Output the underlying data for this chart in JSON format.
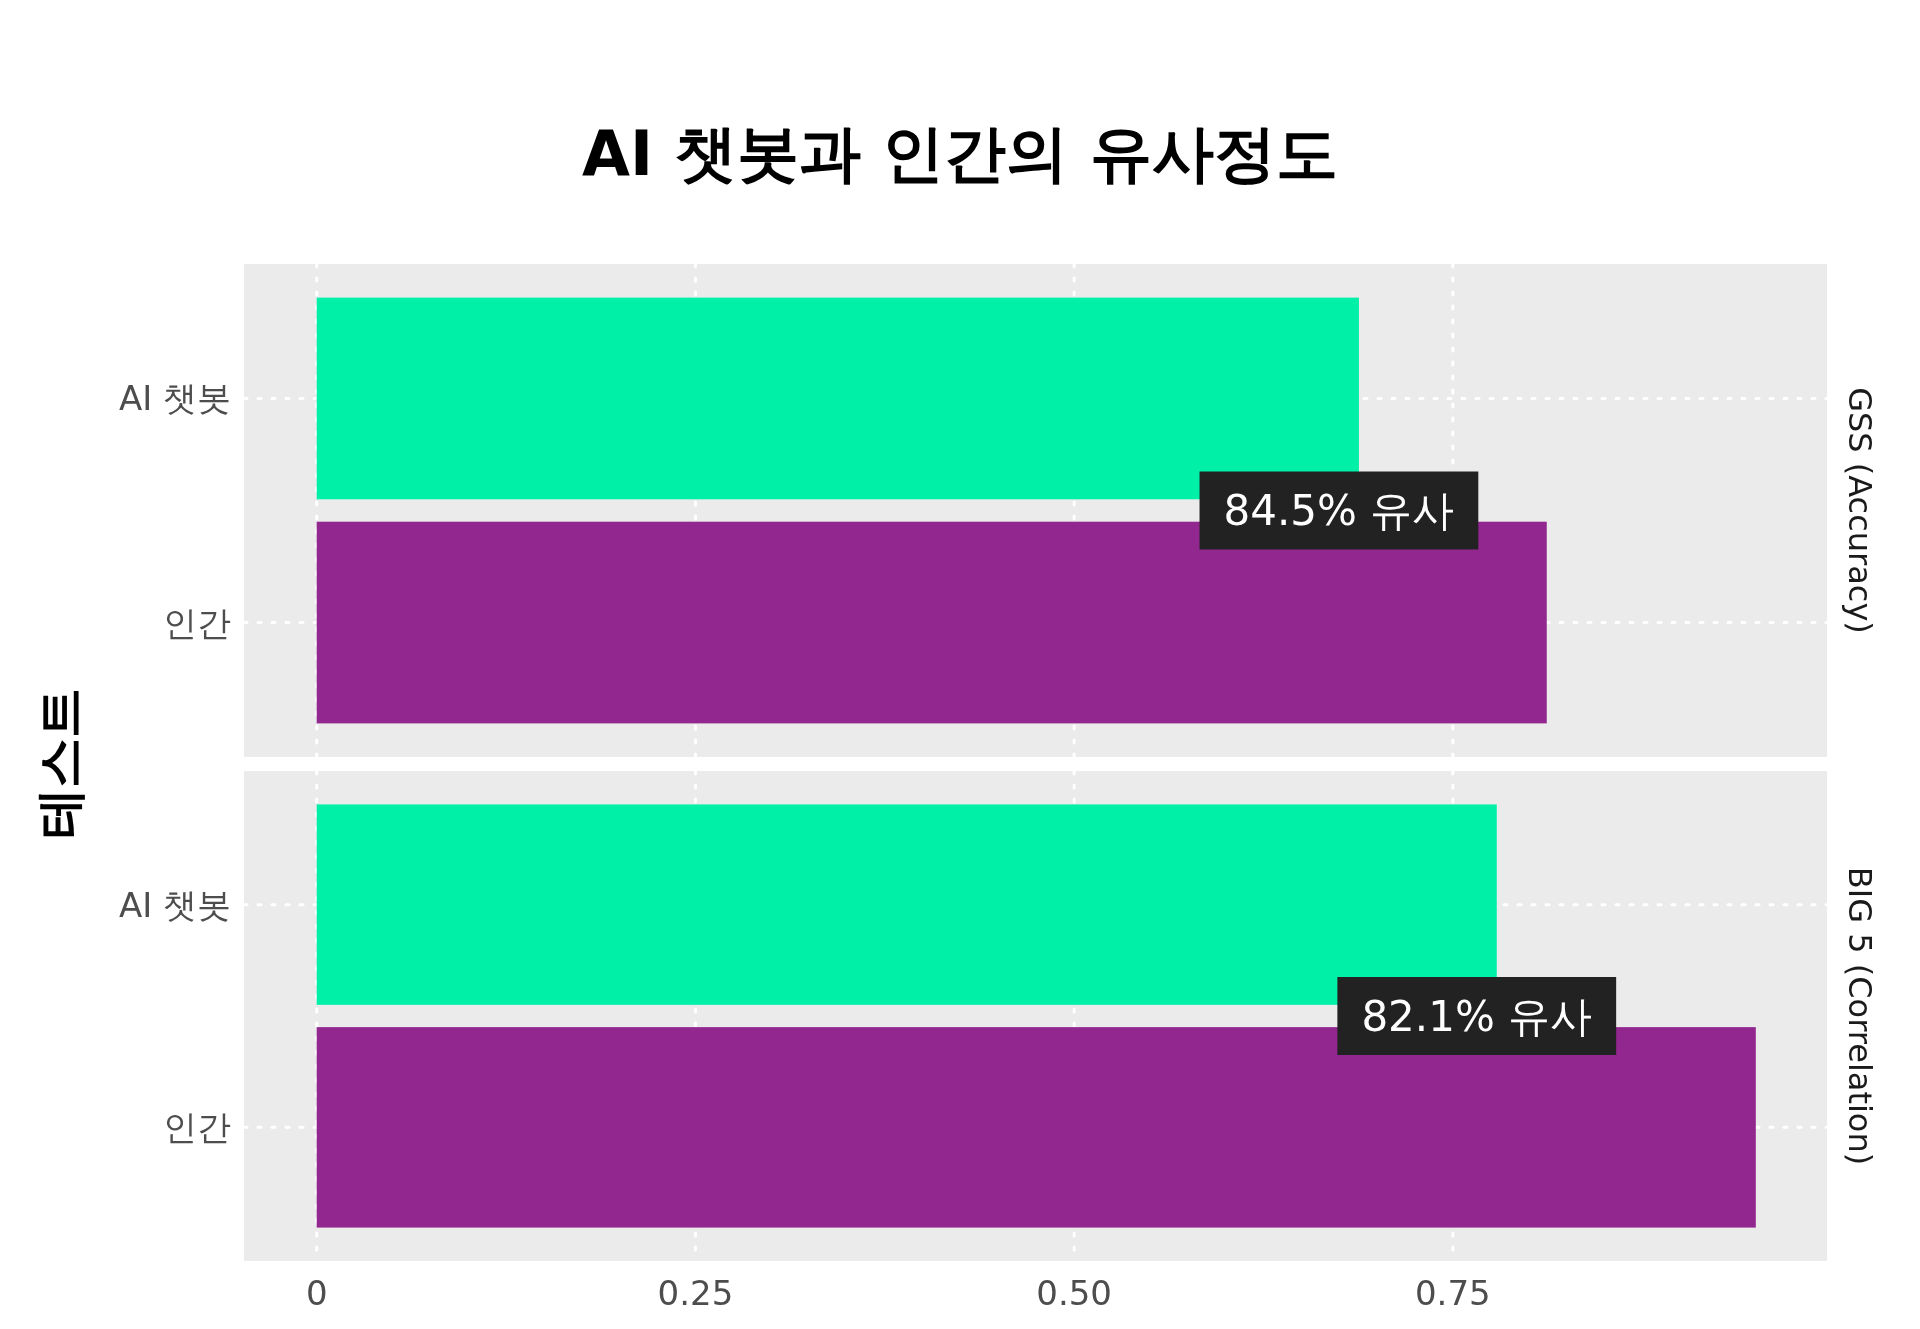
{
  "chart_data": [
    {
      "type": "bar",
      "orientation": "horizontal",
      "title": "AI 챗봇과 인간의 유사정도",
      "ylabel": "테스트",
      "y2label": "GSS (Accuracy)",
      "categories": [
        "AI 챗봇",
        "인간"
      ],
      "values": [
        0.688,
        0.812
      ],
      "colors": [
        "#00f0a8",
        "#92278f"
      ],
      "xlim": [
        -0.048,
        0.997
      ],
      "xticks": [
        0,
        0.25,
        0.5,
        0.75
      ],
      "grid": true,
      "tick_labels": "y",
      "annotations": [
        "84.5% 유사"
      ]
    },
    {
      "type": "bar",
      "orientation": "horizontal",
      "y2label": "BIG 5 (Correlation)",
      "categories": [
        "AI 챗봇",
        "인간"
      ],
      "values": [
        0.779,
        0.95
      ],
      "colors": [
        "#00f0a8",
        "#92278f"
      ],
      "xlim": [
        -0.048,
        0.997
      ],
      "xticks": [
        0,
        0.25,
        {
          "value": 0.5,
          "label": "0.50"
        },
        0.75
      ],
      "grid": true,
      "annotations": [
        "82.1% 유사"
      ]
    }
  ]
}
